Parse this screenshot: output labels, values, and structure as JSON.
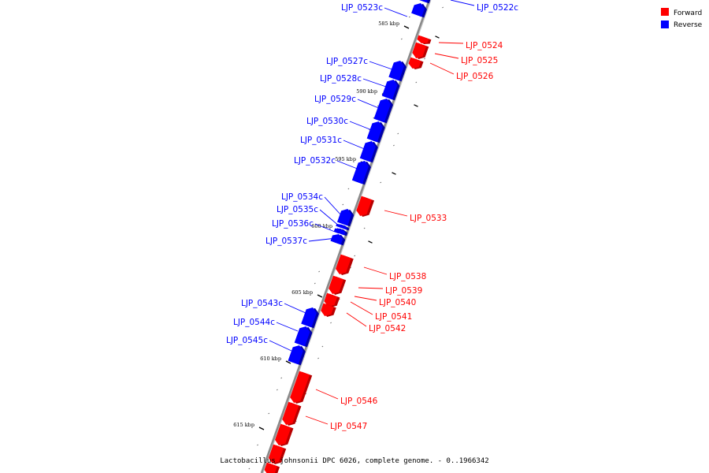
{
  "colors": {
    "forward": "#ff0000",
    "forward_dark": "#b80000",
    "reverse": "#0000ff",
    "reverse_dark": "#0000a8",
    "backbone": "#8a8a8a"
  },
  "legend": {
    "forward": "Forward",
    "reverse": "Reverse"
  },
  "caption": "Lactobacillus johnsonii DPC 6026, complete genome. - 0..1966342",
  "ticks": [
    "585 kbp",
    "590 kbp",
    "595 kbp",
    "600 kbp",
    "605 kbp",
    "610 kbp",
    "615 kbp"
  ],
  "genes": [
    {
      "name": "LJP_0523c",
      "strand": "reverse"
    },
    {
      "name": "LJP_0522c",
      "strand": "reverse"
    },
    {
      "name": "LJP_0524",
      "strand": "forward"
    },
    {
      "name": "LJP_0525",
      "strand": "forward"
    },
    {
      "name": "LJP_0526",
      "strand": "forward"
    },
    {
      "name": "LJP_0527c",
      "strand": "reverse"
    },
    {
      "name": "LJP_0528c",
      "strand": "reverse"
    },
    {
      "name": "LJP_0529c",
      "strand": "reverse"
    },
    {
      "name": "LJP_0530c",
      "strand": "reverse"
    },
    {
      "name": "LJP_0531c",
      "strand": "reverse"
    },
    {
      "name": "LJP_0532c",
      "strand": "reverse"
    },
    {
      "name": "LJP_0533",
      "strand": "forward"
    },
    {
      "name": "LJP_0534c",
      "strand": "reverse"
    },
    {
      "name": "LJP_0535c",
      "strand": "reverse"
    },
    {
      "name": "LJP_0536c",
      "strand": "reverse"
    },
    {
      "name": "LJP_0537c",
      "strand": "reverse"
    },
    {
      "name": "LJP_0538",
      "strand": "forward"
    },
    {
      "name": "LJP_0539",
      "strand": "forward"
    },
    {
      "name": "LJP_0540",
      "strand": "forward"
    },
    {
      "name": "LJP_0541",
      "strand": "forward"
    },
    {
      "name": "LJP_0542",
      "strand": "forward"
    },
    {
      "name": "LJP_0543c",
      "strand": "reverse"
    },
    {
      "name": "LJP_0544c",
      "strand": "reverse"
    },
    {
      "name": "LJP_0545c",
      "strand": "reverse"
    },
    {
      "name": "LJP_0546",
      "strand": "forward"
    },
    {
      "name": "LJP_0547",
      "strand": "forward"
    }
  ]
}
